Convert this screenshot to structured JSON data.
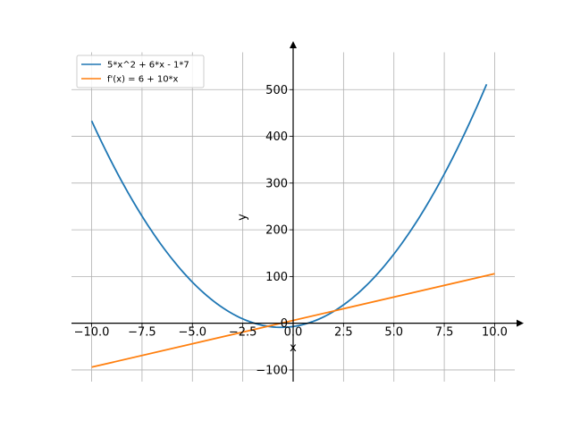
{
  "chart_data": {
    "type": "line",
    "title": "",
    "xlabel": "x",
    "ylabel": "y",
    "xlim": [
      -11.0,
      11.0
    ],
    "ylim": [
      -125,
      600
    ],
    "grid": true,
    "legend_position": "top-left",
    "x_ticks": [
      -10.0,
      -7.5,
      -5.0,
      -2.5,
      0.0,
      2.5,
      5.0,
      7.5,
      10.0
    ],
    "x_tick_labels": [
      "−10.0",
      "−7.5",
      "−5.0",
      "−2.5",
      "0.0",
      "2.5",
      "5.0",
      "7.5",
      "10.0"
    ],
    "y_ticks": [
      -100,
      0,
      100,
      200,
      300,
      400,
      500
    ],
    "y_tick_labels": [
      "−100",
      "0",
      "100",
      "200",
      "300",
      "400",
      "500"
    ],
    "series": [
      {
        "name": "5*x^2 + 6*x - 1*7",
        "color": "#1f77b4",
        "expression": "5*x^2 + 6*x - 7",
        "x_range": [
          -10.0,
          9.6
        ],
        "samples": 121
      },
      {
        "name": "f'(x) = 6 + 10*x",
        "color": "#ff7f0e",
        "expression": "6 + 10*x",
        "x_range": [
          -10.0,
          10.0
        ],
        "samples": 2
      }
    ]
  }
}
